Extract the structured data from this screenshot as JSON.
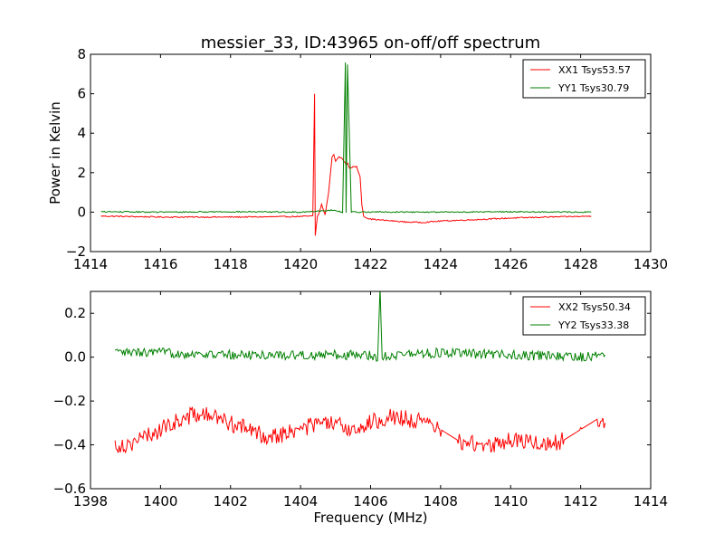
{
  "chart_data": [
    {
      "type": "line",
      "title": "messier_33, ID:43965 on-off/off spectrum",
      "xlabel": "",
      "ylabel": "Power in Kelvin",
      "xlim": [
        1414,
        1430
      ],
      "ylim": [
        -2,
        8
      ],
      "xticks": [
        "1414",
        "1416",
        "1418",
        "1420",
        "1422",
        "1424",
        "1426",
        "1428",
        "1430"
      ],
      "yticks": [
        "−2",
        "0",
        "2",
        "4",
        "6",
        "8"
      ],
      "xtick_values": [
        1414,
        1416,
        1418,
        1420,
        1422,
        1424,
        1426,
        1428,
        1430
      ],
      "ytick_values": [
        -2,
        0,
        2,
        4,
        6,
        8
      ],
      "grid": false,
      "legend": "top-right",
      "series": [
        {
          "name": "XX1 Tsys53.57",
          "color": "#ff0000",
          "x": [
            1414.3,
            1415.0,
            1416.0,
            1417.0,
            1418.0,
            1419.0,
            1420.0,
            1420.35,
            1420.4,
            1420.42,
            1420.48,
            1420.52,
            1420.6,
            1420.7,
            1420.8,
            1420.9,
            1420.95,
            1421.0,
            1421.1,
            1421.2,
            1421.3,
            1421.35,
            1421.4,
            1421.5,
            1421.6,
            1421.7,
            1421.75,
            1421.8,
            1421.9,
            1422.0,
            1422.3,
            1423.0,
            1423.5,
            1424.0,
            1425.0,
            1426.0,
            1427.0,
            1428.0,
            1428.3
          ],
          "y": [
            -0.2,
            -0.22,
            -0.25,
            -0.25,
            -0.25,
            -0.24,
            -0.22,
            -0.2,
            6.0,
            -1.2,
            -0.2,
            -0.1,
            0.4,
            -0.15,
            1.0,
            2.8,
            2.9,
            2.6,
            2.8,
            2.7,
            2.4,
            2.5,
            2.2,
            2.3,
            2.3,
            1.8,
            0.4,
            -0.2,
            -0.3,
            -0.35,
            -0.4,
            -0.5,
            -0.52,
            -0.45,
            -0.38,
            -0.3,
            -0.25,
            -0.22,
            -0.2
          ]
        },
        {
          "name": "YY1 Tsys30.79",
          "color": "#008000",
          "x": [
            1414.3,
            1416.0,
            1418.0,
            1420.0,
            1420.9,
            1421.2,
            1421.28,
            1421.3,
            1421.34,
            1421.45,
            1422.0,
            1424.0,
            1426.0,
            1428.0,
            1428.3
          ],
          "y": [
            0.02,
            0.0,
            0.02,
            0.0,
            0.1,
            0.0,
            7.6,
            0.0,
            7.5,
            0.0,
            0.01,
            0.0,
            0.02,
            0.0,
            0.0
          ]
        }
      ]
    },
    {
      "type": "line",
      "title": "",
      "xlabel": "Frequency (MHz)",
      "ylabel": "",
      "xlim": [
        1398,
        1414
      ],
      "ylim": [
        -0.6,
        0.3
      ],
      "xticks": [
        "1398",
        "1400",
        "1402",
        "1404",
        "1406",
        "1408",
        "1410",
        "1412",
        "1414"
      ],
      "yticks": [
        "−0.6",
        "−0.4",
        "−0.2",
        "0.0",
        "0.2"
      ],
      "xtick_values": [
        1398,
        1400,
        1402,
        1404,
        1406,
        1408,
        1410,
        1412,
        1414
      ],
      "ytick_values": [
        -0.6,
        -0.4,
        -0.2,
        0.0,
        0.2
      ],
      "grid": false,
      "legend": "top-right",
      "series": [
        {
          "name": "XX2 Tsys50.34",
          "color": "#ff0000",
          "x": [
            1398.7,
            1399.0,
            1399.5,
            1400.0,
            1400.5,
            1401.0,
            1401.5,
            1402.0,
            1402.5,
            1403.0,
            1403.5,
            1404.0,
            1404.5,
            1405.0,
            1405.5,
            1406.0,
            1406.5,
            1407.0,
            1407.5,
            1408.0,
            1408.5,
            1409.0,
            1409.5,
            1410.0,
            1410.5,
            1411.0,
            1411.5,
            1412.0,
            1412.5,
            1412.7
          ],
          "y": [
            -0.4,
            -0.4,
            -0.37,
            -0.33,
            -0.29,
            -0.26,
            -0.27,
            -0.3,
            -0.33,
            -0.36,
            -0.35,
            -0.33,
            -0.3,
            -0.31,
            -0.33,
            -0.3,
            -0.27,
            -0.28,
            -0.3,
            -0.33,
            -0.38,
            -0.4,
            -0.4,
            -0.38,
            -0.38,
            -0.4,
            -0.38,
            -0.33,
            -0.28,
            -0.3
          ]
        },
        {
          "name": "YY2 Tsys33.38",
          "color": "#008000",
          "x": [
            1398.7,
            1400.0,
            1402.0,
            1404.0,
            1406.0,
            1406.2,
            1406.27,
            1406.33,
            1406.45,
            1408.0,
            1410.0,
            1412.0,
            1412.7
          ],
          "y": [
            0.02,
            0.02,
            0.01,
            0.01,
            0.01,
            0.0,
            0.3,
            0.0,
            0.01,
            0.02,
            0.01,
            0.0,
            0.01
          ]
        }
      ]
    }
  ]
}
